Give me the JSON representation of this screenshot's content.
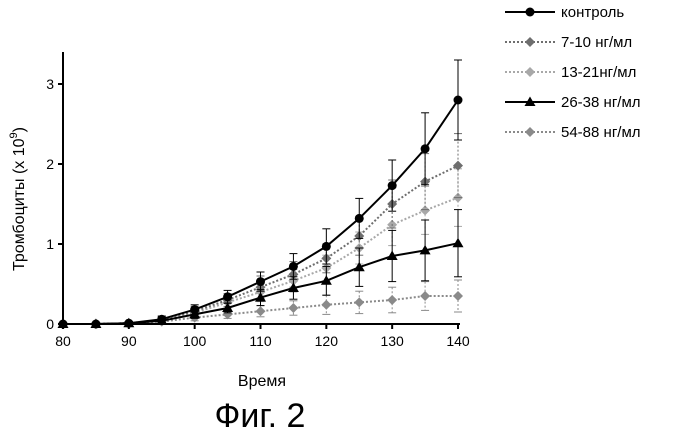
{
  "chart_data": {
    "type": "line",
    "ylabel_main": "Тромбоциты (x 10",
    "ylabel_exp": "9",
    "ylabel_close": ")",
    "xlabel": "Время",
    "caption": "Фиг. 2",
    "xlim": [
      80,
      140
    ],
    "ylim": [
      0,
      3.4
    ],
    "x_ticks": [
      80,
      90,
      100,
      110,
      120,
      130,
      140
    ],
    "y_ticks": [
      0,
      1,
      2,
      3
    ],
    "legend_position": "top-right",
    "x": [
      80,
      85,
      90,
      95,
      100,
      105,
      110,
      115,
      120,
      125,
      130,
      135,
      140
    ],
    "series": [
      {
        "name": "контроль",
        "color": "#000000",
        "marker": "circle",
        "line": "solid",
        "values": [
          0,
          0,
          0.01,
          0.06,
          0.18,
          0.34,
          0.53,
          0.72,
          0.97,
          1.32,
          1.73,
          2.19,
          2.8
        ],
        "errors": [
          0,
          0,
          0.02,
          0.04,
          0.06,
          0.08,
          0.12,
          0.16,
          0.22,
          0.25,
          0.32,
          0.45,
          0.5
        ]
      },
      {
        "name": "7-10 нг/мл",
        "color": "#6e6e6e",
        "marker": "diamond",
        "line": "dotted",
        "values": [
          0,
          0,
          0.01,
          0.05,
          0.16,
          0.3,
          0.46,
          0.62,
          0.82,
          1.1,
          1.5,
          1.78,
          1.98
        ],
        "errors": [
          0,
          0,
          0.02,
          0.04,
          0.06,
          0.08,
          0.14,
          0.16,
          0.18,
          0.24,
          0.3,
          0.35,
          0.4
        ]
      },
      {
        "name": "13-21нг/мл",
        "color": "#a8a8a8",
        "marker": "diamond",
        "line": "dotted",
        "values": [
          0,
          0,
          0.01,
          0.05,
          0.14,
          0.27,
          0.4,
          0.54,
          0.7,
          0.95,
          1.24,
          1.42,
          1.58
        ],
        "errors": [
          0,
          0,
          0.02,
          0.04,
          0.06,
          0.08,
          0.12,
          0.14,
          0.16,
          0.2,
          0.26,
          0.3,
          0.36
        ]
      },
      {
        "name": "26-38 нг/мл",
        "color": "#000000",
        "marker": "triangle",
        "line": "solid",
        "values": [
          0,
          0,
          0.01,
          0.04,
          0.12,
          0.2,
          0.33,
          0.45,
          0.54,
          0.71,
          0.85,
          0.92,
          1.01
        ],
        "errors": [
          0,
          0,
          0.02,
          0.03,
          0.05,
          0.06,
          0.1,
          0.14,
          0.18,
          0.24,
          0.32,
          0.38,
          0.42
        ]
      },
      {
        "name": "54-88 нг/мл",
        "color": "#8a8a8a",
        "marker": "diamond",
        "line": "dotted",
        "values": [
          0,
          0,
          0.01,
          0.03,
          0.08,
          0.12,
          0.16,
          0.2,
          0.24,
          0.27,
          0.3,
          0.35,
          0.35
        ],
        "errors": [
          0,
          0,
          0.01,
          0.02,
          0.04,
          0.05,
          0.07,
          0.09,
          0.12,
          0.14,
          0.16,
          0.18,
          0.2
        ]
      }
    ]
  }
}
